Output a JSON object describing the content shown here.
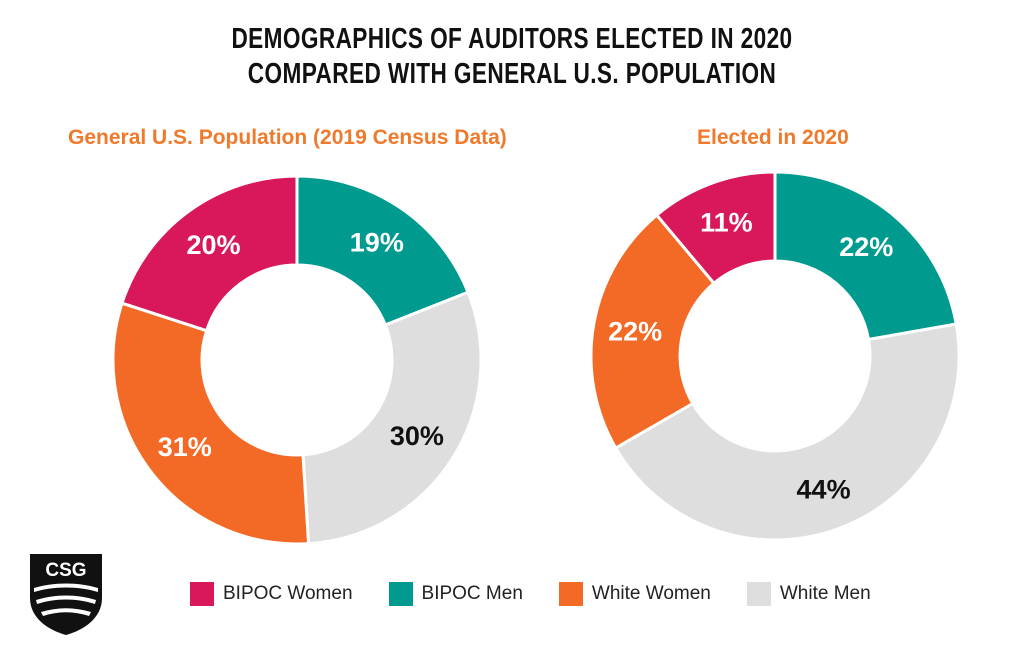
{
  "title_line1": "DEMOGRAPHICS OF AUDITORS ELECTED IN 2020",
  "title_line2": "COMPARED WITH GENERAL U.S. POPULATION",
  "logo_text": "CSG",
  "colors": {
    "bipoc_women": "#d8185a",
    "bipoc_men": "#009b8e",
    "white_women": "#f26a25",
    "white_men": "#dedede",
    "subtitle": "#f07a2c"
  },
  "chart_data": [
    {
      "type": "pie",
      "title": "General U.S. Population (2019 Census Data)",
      "categories": [
        "BIPOC Men",
        "White Men",
        "White Women",
        "BIPOC Women"
      ],
      "values": [
        19,
        30,
        31,
        20
      ],
      "labels": [
        "19%",
        "30%",
        "31%",
        "20%"
      ],
      "donut": true
    },
    {
      "type": "pie",
      "title": "Elected in 2020",
      "categories": [
        "BIPOC Men",
        "White Men",
        "White Women",
        "BIPOC Women"
      ],
      "values": [
        22,
        44,
        22,
        11
      ],
      "labels": [
        "22%",
        "44%",
        "22%",
        "11%"
      ],
      "donut": true
    }
  ],
  "legend": [
    {
      "label": "BIPOC Women",
      "color": "#d8185a"
    },
    {
      "label": "BIPOC Men",
      "color": "#009b8e"
    },
    {
      "label": "White Women",
      "color": "#f26a25"
    },
    {
      "label": "White Men",
      "color": "#dedede"
    }
  ]
}
